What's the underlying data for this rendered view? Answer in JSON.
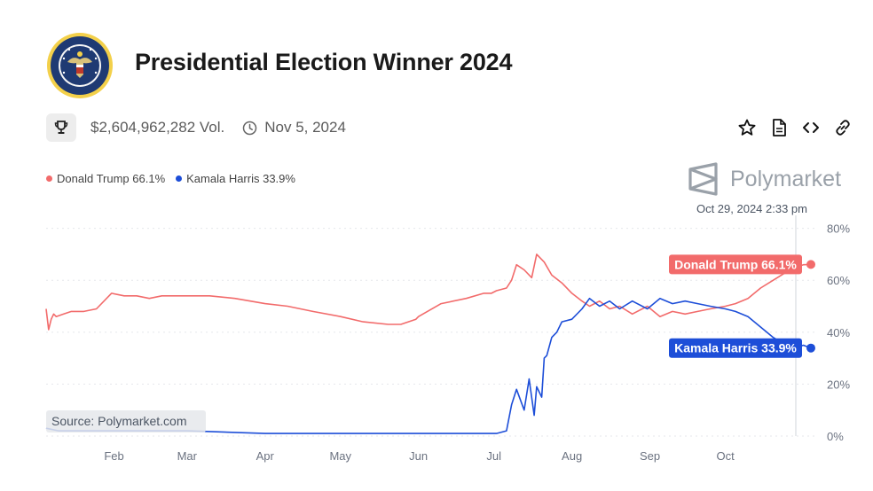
{
  "header": {
    "title": "Presidential Election Winner 2024",
    "seal_text": "SEAL OF THE PRESIDENT OF THE UNITED STATES",
    "volume": "$2,604,962,282 Vol.",
    "end_date": "Nov 5, 2024"
  },
  "brand": {
    "name": "Polymarket"
  },
  "actions": [
    {
      "name": "star-icon"
    },
    {
      "name": "document-icon"
    },
    {
      "name": "code-icon"
    },
    {
      "name": "link-icon"
    }
  ],
  "chart_data": {
    "type": "line",
    "hover_date": "Oct 29, 2024 2:33 pm",
    "source": "Source: Polymarket.com",
    "x_labels": [
      "Feb",
      "Mar",
      "Apr",
      "May",
      "Jun",
      "Jul",
      "Aug",
      "Sep",
      "Oct"
    ],
    "y_ticks": [
      0,
      20,
      40,
      60,
      80
    ],
    "y_tick_labels": [
      "0%",
      "20%",
      "40%",
      "60%",
      "80%"
    ],
    "ylim": [
      0,
      85
    ],
    "grid": true,
    "legend_position": "top-left",
    "colors": {
      "trump": "#f26b6b",
      "harris": "#1d4ed8",
      "gray": "#9aa1a9"
    },
    "series": [
      {
        "name": "Donald Trump",
        "legend_label": "Donald Trump 66.1%",
        "end_label": "Donald Trump 66.1%",
        "color": "#f26b6b",
        "x": [
          "2024-01-05",
          "2024-01-06",
          "2024-01-07",
          "2024-01-08",
          "2024-01-09",
          "2024-01-12",
          "2024-01-15",
          "2024-01-20",
          "2024-01-25",
          "2024-01-31",
          "2024-02-05",
          "2024-02-10",
          "2024-02-15",
          "2024-02-20",
          "2024-03-01",
          "2024-03-10",
          "2024-03-20",
          "2024-04-01",
          "2024-04-10",
          "2024-04-20",
          "2024-05-01",
          "2024-05-10",
          "2024-05-20",
          "2024-05-25",
          "2024-05-31",
          "2024-06-01",
          "2024-06-10",
          "2024-06-20",
          "2024-06-27",
          "2024-06-30",
          "2024-07-02",
          "2024-07-06",
          "2024-07-08",
          "2024-07-10",
          "2024-07-13",
          "2024-07-16",
          "2024-07-18",
          "2024-07-21",
          "2024-07-24",
          "2024-07-28",
          "2024-08-01",
          "2024-08-05",
          "2024-08-08",
          "2024-08-12",
          "2024-08-16",
          "2024-08-20",
          "2024-08-25",
          "2024-08-31",
          "2024-09-05",
          "2024-09-10",
          "2024-09-15",
          "2024-09-20",
          "2024-09-25",
          "2024-10-01",
          "2024-10-05",
          "2024-10-10",
          "2024-10-15",
          "2024-10-20",
          "2024-10-25",
          "2024-10-29",
          "2024-11-01",
          "2024-11-04"
        ],
        "values": [
          49,
          41,
          45,
          47,
          46,
          47,
          48,
          48,
          49,
          55,
          54,
          54,
          53,
          54,
          54,
          54,
          53,
          51,
          50,
          48,
          46,
          44,
          43,
          43,
          45,
          46,
          51,
          53,
          55,
          55,
          56,
          57,
          60,
          66,
          64,
          61,
          70,
          67,
          62,
          59,
          55,
          52,
          50,
          52,
          49,
          50,
          47,
          50,
          46,
          48,
          47,
          48,
          49,
          50,
          51,
          53,
          57,
          60,
          63,
          65,
          66,
          66.1
        ]
      },
      {
        "name": "Kamala Harris",
        "legend_label": "Kamala Harris 33.9%",
        "end_label": "Kamala Harris 33.9%",
        "color": "#1d4ed8",
        "x": [
          "2024-01-05",
          "2024-01-10",
          "2024-01-20",
          "2024-02-01",
          "2024-02-15",
          "2024-03-01",
          "2024-04-01",
          "2024-05-01",
          "2024-06-01",
          "2024-06-25",
          "2024-07-02",
          "2024-07-06",
          "2024-07-08",
          "2024-07-10",
          "2024-07-13",
          "2024-07-15",
          "2024-07-17",
          "2024-07-18",
          "2024-07-20",
          "2024-07-21",
          "2024-07-22",
          "2024-07-24",
          "2024-07-26",
          "2024-07-28",
          "2024-08-01",
          "2024-08-05",
          "2024-08-08",
          "2024-08-12",
          "2024-08-16",
          "2024-08-20",
          "2024-08-25",
          "2024-08-31",
          "2024-09-05",
          "2024-09-10",
          "2024-09-15",
          "2024-09-20",
          "2024-09-25",
          "2024-10-01",
          "2024-10-05",
          "2024-10-10",
          "2024-10-15",
          "2024-10-20",
          "2024-10-25",
          "2024-10-29",
          "2024-11-01",
          "2024-11-04"
        ],
        "values": [
          3,
          2,
          2,
          2,
          2,
          2,
          1,
          1,
          1,
          1,
          1,
          2,
          12,
          18,
          10,
          22,
          8,
          19,
          15,
          30,
          31,
          38,
          40,
          44,
          45,
          49,
          53,
          50,
          52,
          49,
          52,
          49,
          53,
          51,
          52,
          51,
          50,
          49,
          48,
          46,
          42,
          38,
          35,
          34,
          35,
          33.9
        ]
      }
    ]
  }
}
